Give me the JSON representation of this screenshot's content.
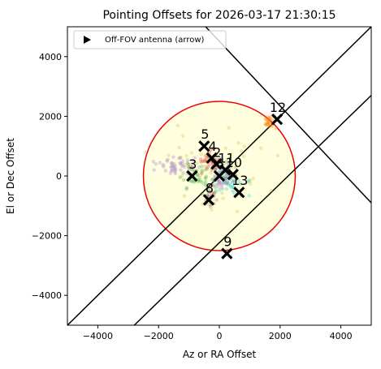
{
  "chart_data": {
    "type": "scatter",
    "title": "Pointing Offsets for 2026-03-17 21:30:15",
    "xlabel": "Az or RA Offset",
    "ylabel": "El or Dec Offset",
    "xlim": [
      -5000,
      5000
    ],
    "ylim": [
      -5000,
      5000
    ],
    "xticks": [
      -4000,
      -2000,
      0,
      2000,
      4000
    ],
    "yticks": [
      -4000,
      -2000,
      0,
      2000,
      4000
    ],
    "xtick_labels": [
      "−4000",
      "−2000",
      "0",
      "2000",
      "4000"
    ],
    "ytick_labels": [
      "−4000",
      "−2000",
      "0",
      "2000",
      "4000"
    ],
    "grid": false,
    "legend": {
      "placement": "top-left",
      "entries": [
        "Off-FOV antenna (arrow)"
      ]
    },
    "fov_circle": {
      "center": [
        0,
        0
      ],
      "radius": 2500,
      "fill": "#ffffe0",
      "edge": "#ee0000"
    },
    "guide_lines": [
      {
        "x": [
          -5000,
          5000
        ],
        "y": [
          -5000,
          5000
        ]
      },
      {
        "x": [
          -2800,
          5000
        ],
        "y": [
          -5000,
          2700
        ]
      },
      {
        "x": [
          -450,
          5000
        ],
        "y": [
          5000,
          -900
        ]
      }
    ],
    "antennas": [
      {
        "label": "12",
        "x": 1900,
        "y": 1900
      },
      {
        "label": "5",
        "x": -500,
        "y": 1000
      },
      {
        "label": "4",
        "x": -250,
        "y": 600
      },
      {
        "label": "2",
        "x": -100,
        "y": 400
      },
      {
        "label": "11",
        "x": 200,
        "y": 200
      },
      {
        "label": "10",
        "x": 450,
        "y": 50
      },
      {
        "label": "3",
        "x": -900,
        "y": 0
      },
      {
        "label": "6",
        "x": 0,
        "y": 0
      },
      {
        "label": "13",
        "x": 650,
        "y": -550
      },
      {
        "label": "8",
        "x": -350,
        "y": -800
      },
      {
        "label": "9",
        "x": 250,
        "y": -2600
      }
    ],
    "point_clouds": [
      {
        "name": "olive",
        "color": "#bcbd22",
        "count": 60,
        "cx": -100,
        "cy": 200,
        "sx": 1500,
        "sy": 1100
      },
      {
        "name": "purple",
        "color": "#9467bd",
        "count": 45,
        "cx": -1400,
        "cy": 350,
        "sx": 600,
        "sy": 250
      },
      {
        "name": "red",
        "color": "#d62728",
        "count": 35,
        "cx": -350,
        "cy": 500,
        "sx": 350,
        "sy": 300
      },
      {
        "name": "orange",
        "color": "#ff7f0e",
        "count": 30,
        "cx": 1700,
        "cy": 1800,
        "sx": 180,
        "sy": 160
      },
      {
        "name": "green",
        "color": "#2ca02c",
        "count": 40,
        "cx": -700,
        "cy": -100,
        "sx": 400,
        "sy": 350
      },
      {
        "name": "blue",
        "color": "#1f77b4",
        "count": 30,
        "cx": 150,
        "cy": 100,
        "sx": 350,
        "sy": 350
      },
      {
        "name": "cyan",
        "color": "#17becf",
        "count": 30,
        "cx": 350,
        "cy": -300,
        "sx": 500,
        "sy": 300
      },
      {
        "name": "brown",
        "color": "#8c564b",
        "count": 20,
        "cx": -300,
        "cy": -700,
        "sx": 200,
        "sy": 300
      },
      {
        "name": "pink",
        "color": "#e377c2",
        "count": 15,
        "cx": 0,
        "cy": -200,
        "sx": 300,
        "sy": 250
      },
      {
        "name": "gray",
        "color": "#7f7f7f",
        "count": 15,
        "cx": 100,
        "cy": 0,
        "sx": 300,
        "sy": 300
      }
    ],
    "marker_color": "#000000"
  }
}
